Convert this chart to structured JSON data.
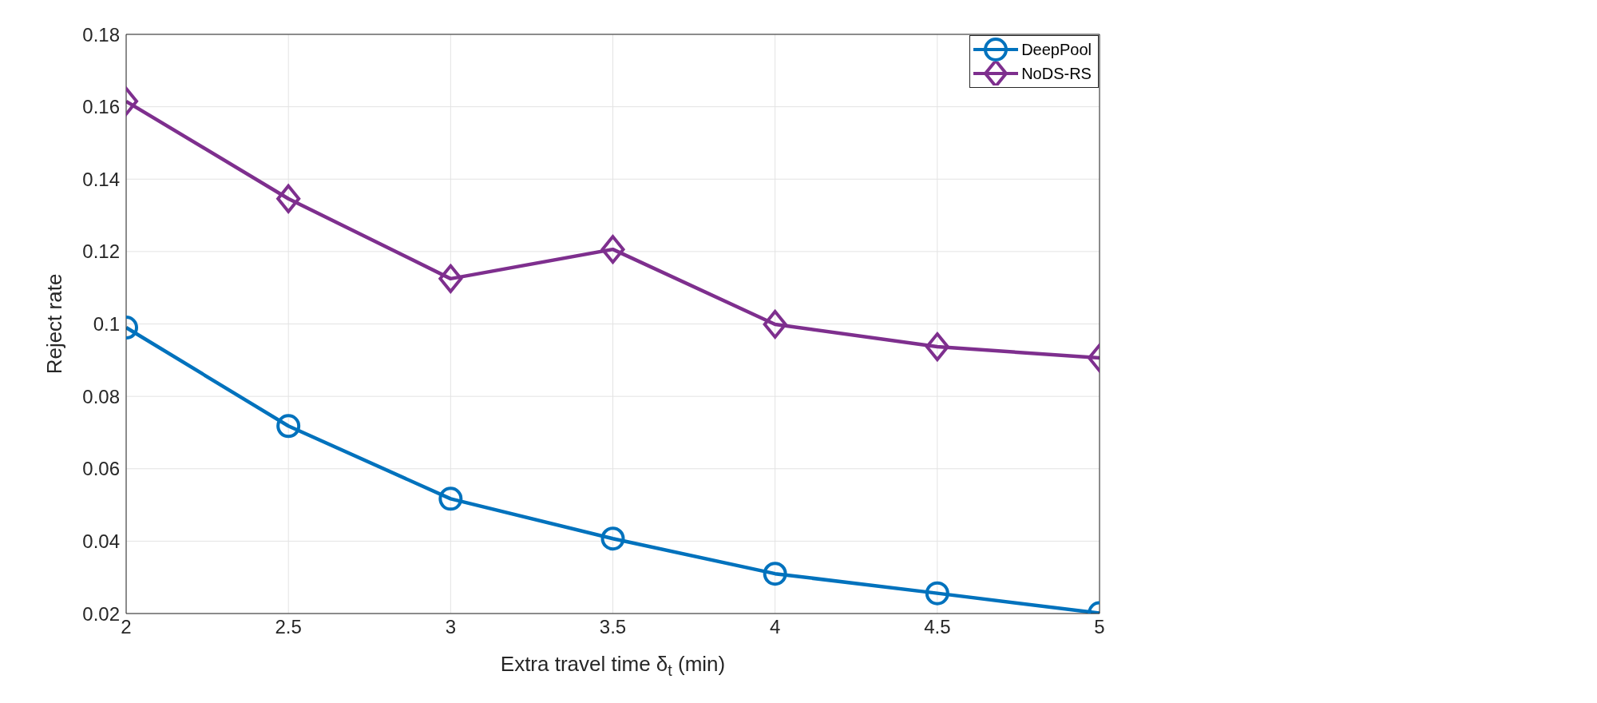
{
  "chart_data": {
    "type": "line",
    "xlabel": "Extra travel time δ$_{t}$ (min)",
    "ylabel": "Reject rate",
    "x": [
      2,
      2.5,
      3,
      3.5,
      4,
      4.5,
      5
    ],
    "series": [
      {
        "name": "DeepPool",
        "color": "#0072bd",
        "marker": "circle",
        "values": [
          0.099,
          0.0718,
          0.0517,
          0.0407,
          0.031,
          0.0256,
          0.0201
        ]
      },
      {
        "name": "NoDS-RS",
        "color": "#7e2f8e",
        "marker": "diamond",
        "values": [
          0.1615,
          0.1346,
          0.1125,
          0.1206,
          0.0999,
          0.0937,
          0.0906
        ]
      }
    ],
    "xlim": [
      2,
      5
    ],
    "xticks": [
      2,
      2.5,
      3,
      3.5,
      4,
      4.5,
      5
    ],
    "ylim": [
      0.02,
      0.18
    ],
    "yticks": [
      0.02,
      0.04,
      0.06,
      0.08,
      0.1,
      0.12,
      0.14,
      0.16,
      0.18
    ],
    "grid": true,
    "legend": "top right",
    "line_style": "solid"
  }
}
